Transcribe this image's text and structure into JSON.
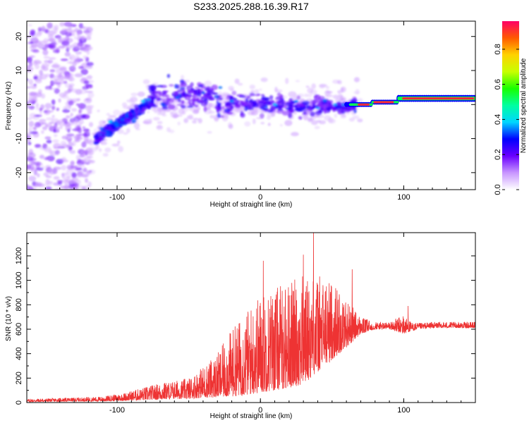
{
  "chart_data": [
    {
      "type": "heatmap",
      "title": "S233.2025.288.16.39.R17",
      "xlabel": "Height of straight line (km)",
      "ylabel": "Frequency (Hz)",
      "xlim": [
        -163,
        150
      ],
      "ylim": [
        -25,
        24.5
      ],
      "xticks": [
        -100,
        0,
        100
      ],
      "yticks": [
        -20,
        -10,
        0,
        10,
        20
      ],
      "colorbar": {
        "label": "Normalized spectral amplitude",
        "range": [
          0.0,
          0.96
        ],
        "ticks": [
          0.0,
          0.2,
          0.4,
          0.6,
          0.8
        ]
      },
      "features": [
        {
          "name": "noise-floor",
          "x_range": [
            -163,
            -125
          ],
          "freq_range": [
            -25,
            24
          ],
          "amplitude": 0.12
        },
        {
          "name": "rising-track",
          "from": [
            -115,
            -10
          ],
          "to": [
            -80,
            1
          ],
          "amplitude": 0.35
        },
        {
          "name": "middle-scatter",
          "x_range": [
            -75,
            70
          ],
          "freq_range": [
            -15,
            12
          ],
          "amplitude": 0.25
        },
        {
          "name": "tone-segment-1",
          "x_range": [
            67,
            78
          ],
          "freq": 0,
          "amplitude": 0.96
        },
        {
          "name": "tone-segment-2",
          "x_range": [
            78,
            95
          ],
          "freq": 0.7,
          "amplitude": 0.96
        },
        {
          "name": "tone-segment-3",
          "x_range": [
            98,
            150
          ],
          "freq": 1.8,
          "amplitude": 0.96
        }
      ]
    },
    {
      "type": "line",
      "xlabel": "Height of straight line (km)",
      "ylabel": "SNR (10 * v/v)",
      "xlim": [
        -163,
        150
      ],
      "ylim": [
        0,
        1390
      ],
      "xticks": [
        -100,
        0,
        100
      ],
      "yticks": [
        0,
        200,
        400,
        600,
        800,
        1000,
        1200
      ],
      "series": [
        {
          "name": "SNR",
          "color": "#ee3333",
          "x_envelope": [
            -163,
            -130,
            -110,
            -95,
            -80,
            -70,
            -60,
            -50,
            -40,
            -30,
            -20,
            -10,
            0,
            10,
            20,
            30,
            40,
            50,
            60,
            70,
            80,
            90,
            100,
            105,
            110,
            120,
            130,
            140,
            150
          ],
          "upper_envelope": [
            30,
            40,
            50,
            80,
            130,
            160,
            180,
            200,
            300,
            400,
            600,
            750,
            900,
            950,
            1000,
            1050,
            1050,
            1000,
            850,
            700,
            660,
            660,
            720,
            660,
            650,
            660,
            660,
            660,
            660
          ],
          "lower_envelope": [
            5,
            10,
            10,
            15,
            20,
            25,
            30,
            30,
            40,
            40,
            50,
            60,
            80,
            100,
            120,
            150,
            250,
            350,
            450,
            560,
            600,
            600,
            560,
            580,
            600,
            610,
            610,
            610,
            610
          ],
          "peaks": [
            {
              "x": 2,
              "y": 1160
            },
            {
              "x": 30,
              "y": 1210
            },
            {
              "x": 37,
              "y": 1390
            },
            {
              "x": 64,
              "y": 1090
            },
            {
              "x": 103,
              "y": 790
            }
          ]
        }
      ]
    }
  ]
}
